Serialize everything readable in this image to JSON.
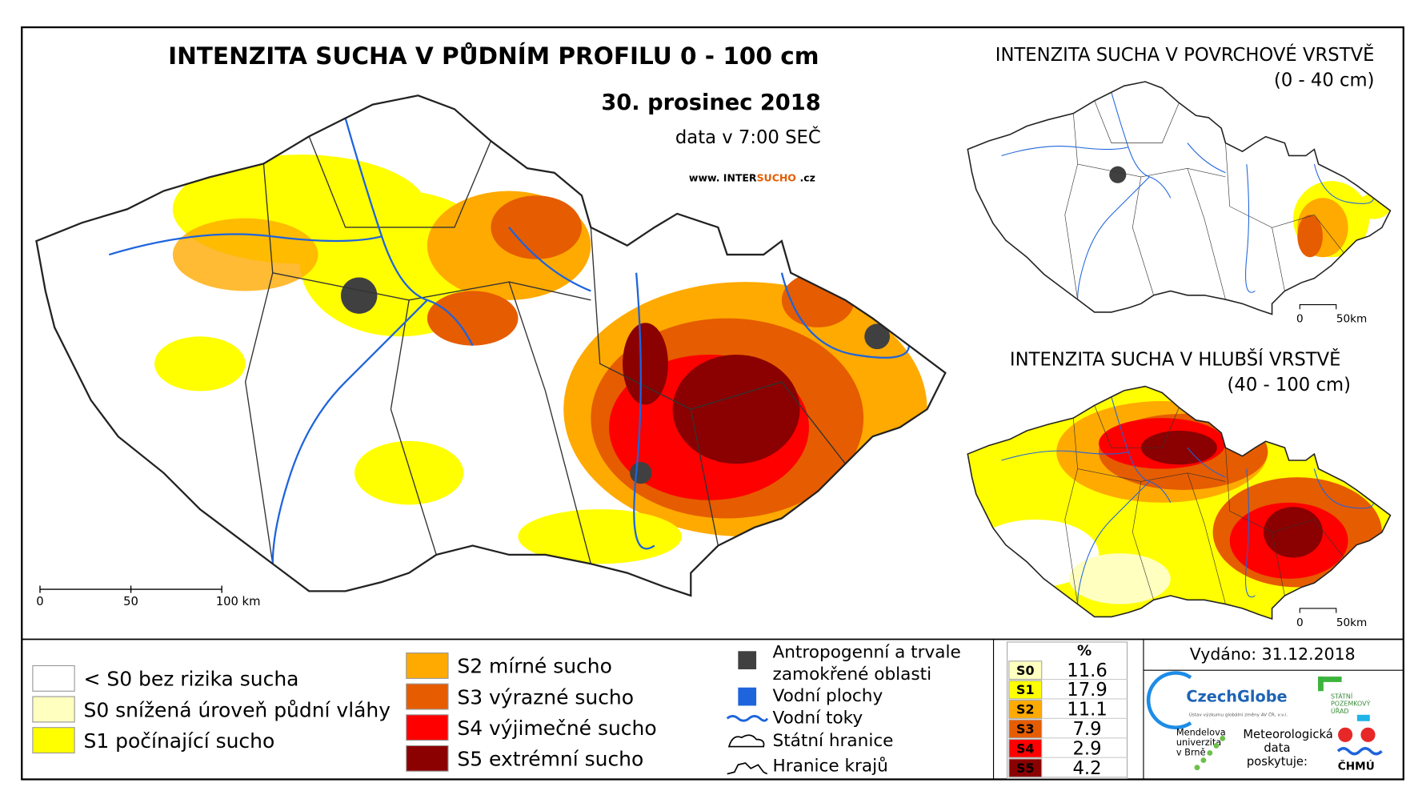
{
  "main_map": {
    "title": "INTENZITA SUCHA V PŮDNÍM PROFILU 0 - 100 cm",
    "date": "30. prosinec 2018",
    "data_time": "data v 7:00 SEČ",
    "website": {
      "prefix": "www. INTER",
      "highlight": "SUCHO",
      "suffix": ".cz"
    },
    "scale": [
      "0",
      "50",
      "100 km"
    ]
  },
  "inset_top": {
    "title": "INTENZITA SUCHA V POVRCHOVÉ VRSTVĚ",
    "subtitle": "(0 - 40 cm)",
    "scale": [
      "0",
      "50km"
    ]
  },
  "inset_bottom": {
    "title": "INTENZITA SUCHA V HLUBŠÍ VRSTVĚ",
    "subtitle": "(40 - 100 cm)",
    "scale": [
      "0",
      "50km"
    ]
  },
  "legend": {
    "classes": [
      {
        "label": "< S0 bez rizika sucha",
        "color": "#ffffff"
      },
      {
        "label": "S0 snížená úroveň půdní vláhy",
        "color": "#ffffc0"
      },
      {
        "label": "S1 počínající sucho",
        "color": "#ffff00"
      },
      {
        "label": "S2 mírné sucho",
        "color": "#ffaa00"
      },
      {
        "label": "S3 výrazné sucho",
        "color": "#e65c00"
      },
      {
        "label": "S4 výjimečné sucho",
        "color": "#ff0000"
      },
      {
        "label": "S5 extrémní sucho",
        "color": "#8b0000"
      }
    ],
    "symbols": [
      {
        "label_lines": [
          "Antropogenní a trvale",
          "zamokřené oblasti"
        ],
        "color": "#404040"
      },
      {
        "label_lines": [
          "Vodní plochy"
        ],
        "color": "#1e64dc"
      },
      {
        "label_lines": [
          "Vodní toky"
        ],
        "color": "#1e64dc"
      },
      {
        "label_lines": [
          "Státní hranice"
        ],
        "color": "#000000"
      },
      {
        "label_lines": [
          "Hranice krajů"
        ],
        "color": "#000000"
      }
    ]
  },
  "stats": {
    "header": "%",
    "rows": [
      {
        "code": "S0",
        "value": "11.6",
        "color": "#ffffc0"
      },
      {
        "code": "S1",
        "value": "17.9",
        "color": "#ffff00"
      },
      {
        "code": "S2",
        "value": "11.1",
        "color": "#ffaa00"
      },
      {
        "code": "S3",
        "value": "7.9",
        "color": "#e65c00"
      },
      {
        "code": "S4",
        "value": "2.9",
        "color": "#ff0000"
      },
      {
        "code": "S5",
        "value": "4.2",
        "color": "#8b0000"
      }
    ]
  },
  "footer": {
    "issued": "Vydáno: 31.12.2018",
    "czechglobe": "CzechGlobe",
    "czechglobe_sub": "Ústav výzkumu globální změny AV ČR, v.v.i.",
    "spu": [
      "STÁTNÍ",
      "POZEMKOVÝ",
      "ÚŘAD"
    ],
    "mendelu": [
      "Mendelova",
      "univerzita",
      "v Brně"
    ],
    "chmu_note": [
      "Meteorologická",
      "data",
      "poskytuje:"
    ],
    "chmu": "ČHMÚ"
  }
}
